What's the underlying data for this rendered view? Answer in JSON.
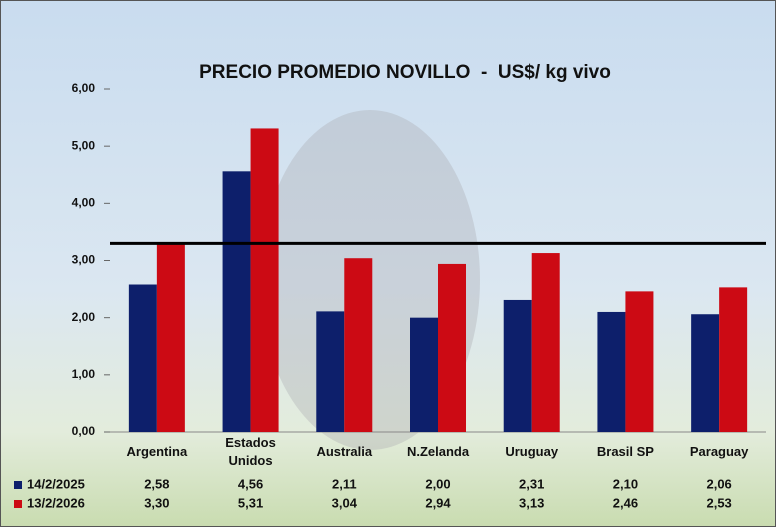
{
  "chart_data": {
    "type": "bar",
    "title": "PRECIO PROMEDIO NOVILLO  -  US$/ kg vivo",
    "categories": [
      "Argentina",
      "Estados Unidos",
      "Australia",
      "N.Zelanda",
      "Uruguay",
      "Brasil SP",
      "Paraguay"
    ],
    "series": [
      {
        "name": "14/2/2025",
        "color": "#0d1f6b",
        "values": [
          2.58,
          4.56,
          2.11,
          2.0,
          2.31,
          2.1,
          2.06
        ],
        "value_labels": [
          "2,58",
          "4,56",
          "2,11",
          "2,00",
          "2,31",
          "2,10",
          "2,06"
        ]
      },
      {
        "name": "13/2/2026",
        "color": "#cc0a14",
        "values": [
          3.3,
          5.31,
          3.04,
          2.94,
          3.13,
          2.46,
          2.53
        ],
        "value_labels": [
          "3,30",
          "5,31",
          "3,04",
          "2,94",
          "3,13",
          "2,46",
          "2,53"
        ]
      }
    ],
    "reference_line": 3.3,
    "ylim": [
      0,
      6
    ],
    "yticks": [
      {
        "value": 0,
        "label": "0,00"
      },
      {
        "value": 1,
        "label": "1,00"
      },
      {
        "value": 2,
        "label": "2,00"
      },
      {
        "value": 3,
        "label": "3,00"
      },
      {
        "value": 4,
        "label": "4,00"
      },
      {
        "value": 5,
        "label": "5,00"
      },
      {
        "value": 6,
        "label": "6,00"
      }
    ]
  }
}
